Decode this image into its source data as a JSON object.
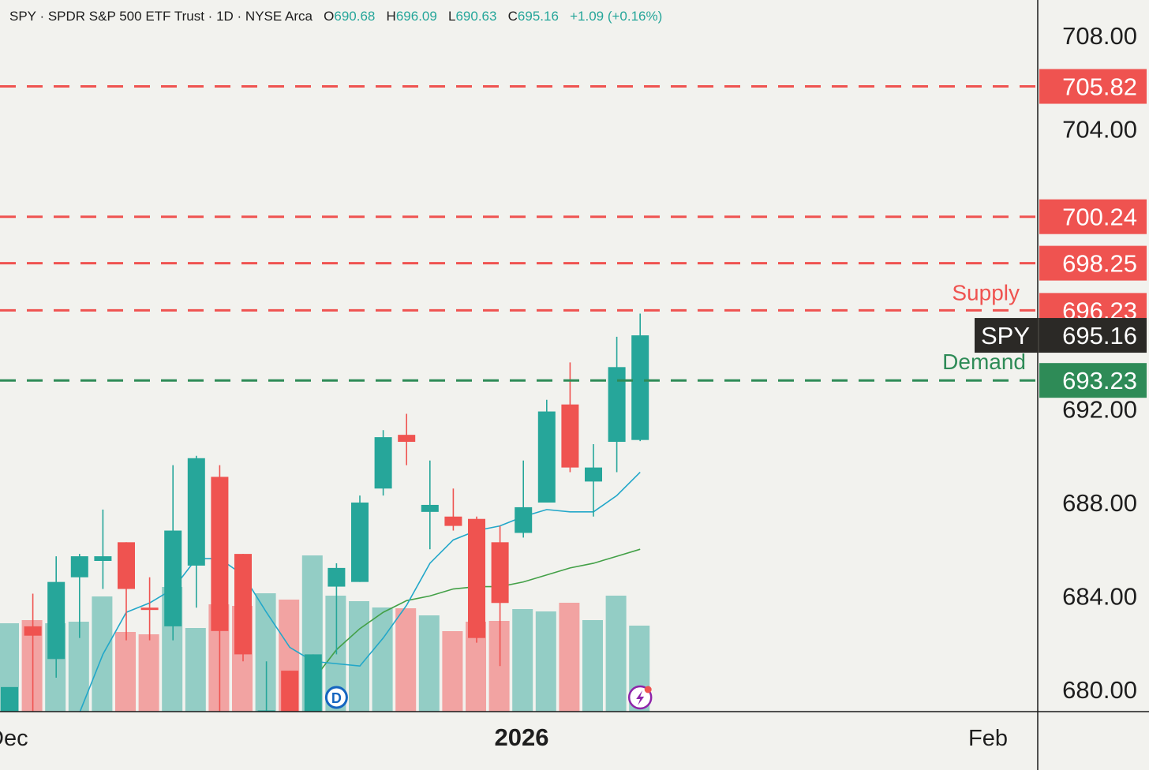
{
  "header": {
    "symbol": "SPY",
    "name": "SPDR S&P 500 ETF Trust",
    "interval": "1D",
    "exchange": "NYSE Arca",
    "open_label": "O",
    "open": "690.68",
    "high_label": "H",
    "high": "696.09",
    "low_label": "L",
    "low": "690.63",
    "close_label": "C",
    "close": "695.16",
    "change": "+1.09 (+0.16%)"
  },
  "colors": {
    "up": "#26a69a",
    "down": "#ef5350",
    "up_volume": "#93cdc5",
    "down_volume": "#f2a3a2",
    "supply_line": "#ef5350",
    "demand_line": "#2e8b57",
    "ma_fast": "#22a7c9",
    "ma_slow": "#43a047",
    "price_tag": "#2b2926",
    "background": "#f2f2ee"
  },
  "chart_data": {
    "type": "candlestick",
    "y_axis": {
      "ticks": [
        "708.00",
        "704.00",
        "692.00",
        "688.00",
        "684.00",
        "680.00"
      ],
      "ylim": [
        679.0,
        709.5
      ]
    },
    "x_axis": {
      "labels": [
        "Dec",
        "2026",
        "Feb"
      ]
    },
    "candles": [
      {
        "o": 679.0,
        "h": 680.0,
        "l": 679.0,
        "c": 680.1
      },
      {
        "o": 682.7,
        "h": 684.1,
        "l": 679.0,
        "c": 682.3
      },
      {
        "o": 681.3,
        "h": 685.7,
        "l": 680.5,
        "c": 684.6
      },
      {
        "o": 684.8,
        "h": 685.8,
        "l": 682.2,
        "c": 685.7
      },
      {
        "o": 685.5,
        "h": 687.7,
        "l": 684.3,
        "c": 685.7
      },
      {
        "o": 686.3,
        "h": 686.3,
        "l": 682.1,
        "c": 684.3
      },
      {
        "o": 683.5,
        "h": 684.8,
        "l": 682.1,
        "c": 683.4
      },
      {
        "o": 682.7,
        "h": 689.6,
        "l": 682.1,
        "c": 686.8
      },
      {
        "o": 685.3,
        "h": 690.0,
        "l": 683.5,
        "c": 689.9
      },
      {
        "o": 689.1,
        "h": 689.6,
        "l": 679.0,
        "c": 682.5
      },
      {
        "o": 685.8,
        "h": 685.8,
        "l": 681.2,
        "c": 681.5
      },
      {
        "o": 679.0,
        "h": 681.2,
        "l": 679.0,
        "c": 679.1
      },
      {
        "o": 680.8,
        "h": 680.8,
        "l": 679.0,
        "c": 679.0
      },
      {
        "o": 679.0,
        "h": 681.5,
        "l": 679.0,
        "c": 681.5
      },
      {
        "o": 684.4,
        "h": 685.4,
        "l": 681.5,
        "c": 685.2
      },
      {
        "o": 684.6,
        "h": 688.3,
        "l": 684.6,
        "c": 688.0
      },
      {
        "o": 688.6,
        "h": 691.1,
        "l": 688.3,
        "c": 690.8
      },
      {
        "o": 690.9,
        "h": 691.8,
        "l": 689.6,
        "c": 690.6
      },
      {
        "o": 687.6,
        "h": 689.8,
        "l": 686.0,
        "c": 687.9
      },
      {
        "o": 687.4,
        "h": 688.6,
        "l": 686.8,
        "c": 687.0
      },
      {
        "o": 687.3,
        "h": 687.4,
        "l": 682.0,
        "c": 682.2
      },
      {
        "o": 686.3,
        "h": 687.0,
        "l": 681.0,
        "c": 683.7
      },
      {
        "o": 686.7,
        "h": 689.8,
        "l": 686.5,
        "c": 687.8
      },
      {
        "o": 688.0,
        "h": 692.4,
        "l": 688.0,
        "c": 691.9
      },
      {
        "o": 692.2,
        "h": 694.0,
        "l": 689.3,
        "c": 689.5
      },
      {
        "o": 688.9,
        "h": 690.5,
        "l": 687.4,
        "c": 689.5
      },
      {
        "o": 690.6,
        "h": 695.1,
        "l": 689.3,
        "c": 693.8
      },
      {
        "o": 690.68,
        "h": 696.09,
        "l": 690.63,
        "c": 695.16
      }
    ],
    "volume_scale_max": 220,
    "volumes": [
      112,
      116,
      112,
      114,
      146,
      101,
      98,
      158,
      106,
      136,
      134,
      150,
      142,
      198,
      147,
      140,
      132,
      131,
      122,
      102,
      114,
      115,
      130,
      127,
      138,
      116,
      147,
      109
    ],
    "ma_fast": [
      {
        "i": 3,
        "v": 679.0
      },
      {
        "i": 4,
        "v": 681.5
      },
      {
        "i": 5,
        "v": 683.3
      },
      {
        "i": 6,
        "v": 683.7
      },
      {
        "i": 7,
        "v": 684.3
      },
      {
        "i": 8,
        "v": 685.6
      },
      {
        "i": 9,
        "v": 685.6
      },
      {
        "i": 10,
        "v": 684.9
      },
      {
        "i": 11,
        "v": 683.3
      },
      {
        "i": 12,
        "v": 681.8
      },
      {
        "i": 13,
        "v": 681.2
      },
      {
        "i": 14,
        "v": 681.1
      },
      {
        "i": 15,
        "v": 681.0
      },
      {
        "i": 16,
        "v": 682.2
      },
      {
        "i": 17,
        "v": 683.6
      },
      {
        "i": 18,
        "v": 685.4
      },
      {
        "i": 19,
        "v": 686.4
      },
      {
        "i": 20,
        "v": 686.8
      },
      {
        "i": 21,
        "v": 687.0
      },
      {
        "i": 22,
        "v": 687.4
      },
      {
        "i": 23,
        "v": 687.7
      },
      {
        "i": 24,
        "v": 687.6
      },
      {
        "i": 25,
        "v": 687.6
      },
      {
        "i": 26,
        "v": 688.3
      },
      {
        "i": 27,
        "v": 689.3
      }
    ],
    "ma_slow": [
      {
        "i": 13,
        "v": 680.4
      },
      {
        "i": 14,
        "v": 681.7
      },
      {
        "i": 15,
        "v": 682.6
      },
      {
        "i": 16,
        "v": 683.3
      },
      {
        "i": 17,
        "v": 683.8
      },
      {
        "i": 18,
        "v": 684.0
      },
      {
        "i": 19,
        "v": 684.3
      },
      {
        "i": 20,
        "v": 684.4
      },
      {
        "i": 21,
        "v": 684.4
      },
      {
        "i": 22,
        "v": 684.6
      },
      {
        "i": 23,
        "v": 684.9
      },
      {
        "i": 24,
        "v": 685.2
      },
      {
        "i": 25,
        "v": 685.4
      },
      {
        "i": 26,
        "v": 685.7
      },
      {
        "i": 27,
        "v": 686.0
      }
    ],
    "levels": [
      {
        "price": 705.82,
        "label": "705.82",
        "kind": "supply"
      },
      {
        "price": 700.24,
        "label": "700.24",
        "kind": "supply"
      },
      {
        "price": 698.25,
        "label": "698.25",
        "kind": "supply"
      },
      {
        "price": 696.23,
        "label": "696.23",
        "kind": "supply"
      },
      {
        "price": 693.23,
        "label": "693.23",
        "kind": "demand"
      }
    ],
    "zone_labels": {
      "supply": "Supply",
      "demand": "Demand"
    },
    "price_tag": {
      "symbol": "SPY",
      "price": "695.16"
    },
    "markers": [
      {
        "i": 14,
        "type": "dividend",
        "label": "D"
      },
      {
        "i": 27,
        "type": "earnings-flash"
      }
    ]
  }
}
